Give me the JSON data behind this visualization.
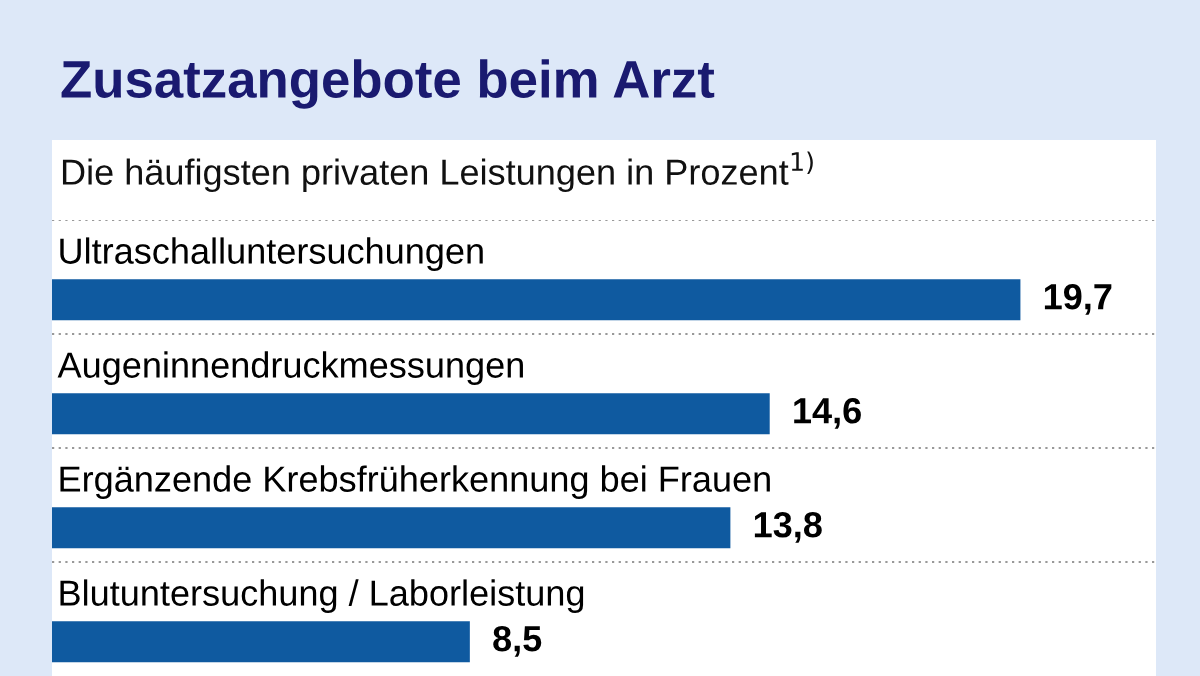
{
  "chart_data": {
    "type": "bar",
    "orientation": "horizontal",
    "title": "Zusatzangebote beim Arzt",
    "subtitle": "Die häufigsten privaten Leistungen in Prozent$^{1)}$",
    "categories": [
      "Ultraschalluntersuchungen",
      "Augeninnendruckmessungen",
      "Ergänzende Krebsfrüherkennung bei Frauen",
      "Blutuntersuchung / Laborleistung"
    ],
    "values": [
      19.7,
      14.6,
      13.8,
      8.5
    ],
    "value_labels": [
      "19,7",
      "14,6",
      "13,8",
      "8,5"
    ],
    "color": "#0f5aa0"
  }
}
